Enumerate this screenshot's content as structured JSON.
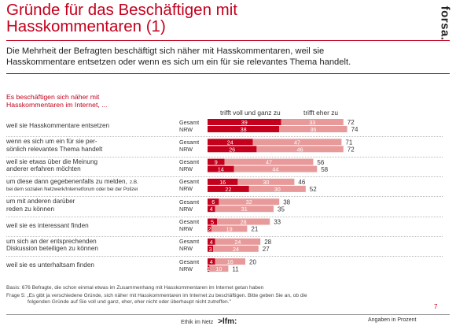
{
  "header": {
    "title_lines": [
      "Gründe für das Beschäftigen mit",
      "Hasskommentaren (1)"
    ],
    "logo": "forsa."
  },
  "intro_lines": [
    "Die Mehrheit der Befragten beschäftigt sich näher mit Hasskommentaren, weil sie",
    "Hasskommentare entsetzen oder wenn es sich um ein für sie relevantes Thema handelt."
  ],
  "question_lines": [
    "Es beschäftigen sich näher mit",
    "Hasskommentaren im Internet, ..."
  ],
  "legend": {
    "voll": "trifft voll und ganz zu",
    "eher": "trifft eher zu"
  },
  "group_labels": [
    "Gesamt",
    "NRW"
  ],
  "colors": {
    "accent": "#c4001d",
    "voll": "#c4001d",
    "eher": "#e89a9a",
    "text": "#333333"
  },
  "chart_data": {
    "type": "bar",
    "orientation": "horizontal",
    "stacked": true,
    "series": [
      {
        "name": "trifft voll und ganz zu",
        "color": "#c4001d"
      },
      {
        "name": "trifft eher zu",
        "color": "#e89a9a"
      }
    ],
    "items": [
      {
        "label_lines": [
          "weil sie Hasskommentare entsetzen"
        ],
        "gesamt": {
          "voll": 39,
          "eher": 33,
          "total": 72
        },
        "nrw": {
          "voll": 38,
          "eher": 36,
          "total": 74
        }
      },
      {
        "label_lines": [
          "wenn es sich um ein für sie per-",
          "sönlich relevantes Thema handelt"
        ],
        "gesamt": {
          "voll": 24,
          "eher": 47,
          "total": 71
        },
        "nrw": {
          "voll": 26,
          "eher": 46,
          "total": 72
        }
      },
      {
        "label_lines": [
          "weil sie etwas über die Meinung",
          "anderer erfahren möchten"
        ],
        "gesamt": {
          "voll": 9,
          "eher": 47,
          "total": 56
        },
        "nrw": {
          "voll": 14,
          "eher": 44,
          "total": 58
        }
      },
      {
        "label_lines": [
          "um diese dann gegebenenfalls zu melden,",
          "bei dem sozialen Netzwerk/Internetforum oder bei der Polizei"
        ],
        "label_suffix": "z.B.",
        "gesamt": {
          "voll": 16,
          "eher": 30,
          "total": 46
        },
        "nrw": {
          "voll": 22,
          "eher": 30,
          "total": 52
        }
      },
      {
        "label_lines": [
          "um mit anderen darüber",
          "reden zu können"
        ],
        "gesamt": {
          "voll": 6,
          "eher": 32,
          "total": 38
        },
        "nrw": {
          "voll": 4,
          "eher": 31,
          "total": 35
        }
      },
      {
        "label_lines": [
          "weil sie es interessant finden"
        ],
        "gesamt": {
          "voll": 5,
          "eher": 28,
          "total": 33
        },
        "nrw": {
          "voll": 2,
          "eher": 19,
          "total": 21
        }
      },
      {
        "label_lines": [
          "um sich an der entsprechenden",
          "Diskussion beteiligen zu können"
        ],
        "gesamt": {
          "voll": 4,
          "eher": 24,
          "total": 28
        },
        "nrw": {
          "voll": 3,
          "eher": 24,
          "total": 27
        }
      },
      {
        "label_lines": [
          "weil sie es unterhaltsam finden"
        ],
        "gesamt": {
          "voll": 4,
          "eher": 16,
          "total": 20
        },
        "nrw": {
          "voll": 1,
          "eher": 10,
          "total": 11
        }
      }
    ]
  },
  "footer": {
    "basis": "Basis: 676 Befragte, die schon einmal etwas im Zusammenhang mit Hasskommentaren im Internet getan haben",
    "frage_lines": [
      "Frage 5:   „Es gibt ja verschiedene Gründe, sich näher mit Hasskommentaren im Internet zu beschäftigen. Bitte geben Sie an, ob die",
      "folgenden Gründe auf Sie voll und ganz, eher, eher nicht oder überhaupt nicht zutreffen.\""
    ],
    "page_number": "7",
    "center_text": "Ethik im Netz",
    "center_logo": ">lfm:",
    "right_text": "Angaben in Prozent"
  }
}
